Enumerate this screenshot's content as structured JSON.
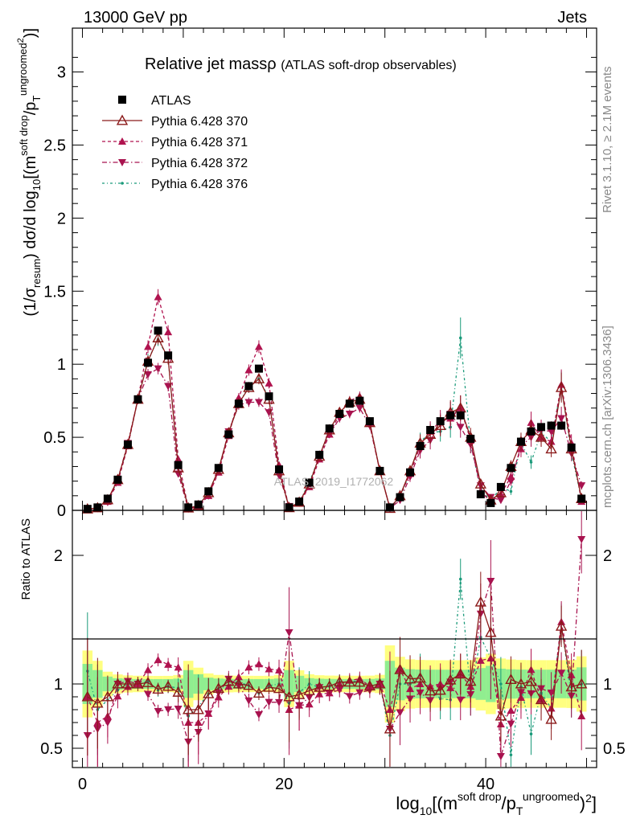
{
  "header": {
    "left": "13000 GeV pp",
    "right": "Jets"
  },
  "side_labels": {
    "top": "Rivet 3.1.10, ≥ 2.1M events",
    "bottom": "mcplots.cern.ch [arXiv:1306.3436]"
  },
  "watermark": "ATLAS_2019_I1772062",
  "title": {
    "main": "Relative jet massρ",
    "sub": "(ATLAS soft-drop observables)"
  },
  "main_ylabel": {
    "pre": "(1/σ",
    "sub1": "resum",
    "mid": ") dσ/d log",
    "sub2": "10",
    "post": "[(m",
    "sup1": "soft drop",
    "slash": "/p",
    "sub3": "T",
    "sup2": "ungroomed",
    "sup3": "2",
    "end": ")]"
  },
  "ratio_ylabel": "Ratio to ATLAS",
  "xlabel": {
    "pre": "log",
    "sub1": "10",
    "mid": "[(m",
    "sup1": "soft drop",
    "slash": "/p",
    "sub2": "T",
    "sup2": "ungroomed",
    "end": ")",
    "sup3": "2",
    "close": "]"
  },
  "legend": [
    {
      "name": "ATLAS",
      "color": "#000000",
      "marker": "square"
    },
    {
      "name": "Pythia 6.428 370",
      "color": "#8b1a1a",
      "marker": "triangle-open"
    },
    {
      "name": "Pythia 6.428 371",
      "color": "#b0134f",
      "marker": "triangle-up"
    },
    {
      "name": "Pythia 6.428 372",
      "color": "#a8134f",
      "marker": "triangle-down"
    },
    {
      "name": "Pythia 6.428 376",
      "color": "#1a9a7a",
      "marker": "dot"
    }
  ],
  "chart_data": {
    "type": "scatter",
    "x": [
      0.5,
      1.5,
      2.5,
      3.5,
      4.5,
      5.5,
      6.5,
      7.5,
      8.5,
      9.5,
      10.5,
      11.5,
      12.5,
      13.5,
      14.5,
      15.5,
      16.5,
      17.5,
      18.5,
      19.5,
      20.5,
      21.5,
      22.5,
      23.5,
      24.5,
      25.5,
      26.5,
      27.5,
      28.5,
      29.5,
      30.5,
      31.5,
      32.5,
      33.5,
      34.5,
      35.5,
      36.5,
      37.5,
      38.5,
      39.5,
      40.5,
      41.5,
      42.5,
      43.5,
      44.5,
      45.5,
      46.5,
      47.5,
      48.5,
      49.5
    ],
    "xlim": [
      -1,
      51
    ],
    "xticks": [
      0,
      20,
      40
    ],
    "main_ylim": [
      0,
      3.3
    ],
    "main_yticks": [
      0,
      0.5,
      1,
      1.5,
      2,
      2.5,
      3
    ],
    "main_ytick_labels": [
      "0",
      "0.5",
      "1",
      "1.5",
      "2",
      "2.5",
      "3"
    ],
    "ratio_ylim": [
      0.35,
      2.35
    ],
    "ratio_yticks": [
      0.5,
      1,
      2
    ],
    "ratio_ytick_labels": [
      "0.5",
      "1",
      "2"
    ],
    "series": [
      {
        "name": "ATLAS",
        "values": [
          0.01,
          0.02,
          0.08,
          0.21,
          0.45,
          0.76,
          1.01,
          1.23,
          1.06,
          0.31,
          0.02,
          0.04,
          0.13,
          0.29,
          0.52,
          0.73,
          0.85,
          0.97,
          0.78,
          0.28,
          0.02,
          0.06,
          0.19,
          0.38,
          0.56,
          0.66,
          0.73,
          0.75,
          0.61,
          0.27,
          0.02,
          0.09,
          0.26,
          0.44,
          0.55,
          0.61,
          0.65,
          0.65,
          0.49,
          0.11,
          0.05,
          0.16,
          0.29,
          0.47,
          0.54,
          0.57,
          0.58,
          0.58,
          0.43,
          0.08
        ]
      },
      {
        "name": "Pythia 6.428 370",
        "values": [
          0.009,
          0.017,
          0.072,
          0.21,
          0.45,
          0.76,
          1.02,
          1.18,
          1.04,
          0.29,
          0.016,
          0.032,
          0.12,
          0.28,
          0.53,
          0.73,
          0.84,
          0.9,
          0.76,
          0.27,
          0.018,
          0.055,
          0.18,
          0.37,
          0.55,
          0.67,
          0.74,
          0.76,
          0.6,
          0.27,
          0.013,
          0.1,
          0.27,
          0.46,
          0.52,
          0.58,
          0.67,
          0.7,
          0.5,
          0.18,
          0.07,
          0.12,
          0.3,
          0.47,
          0.55,
          0.5,
          0.42,
          0.84,
          0.42,
          0.08
        ]
      },
      {
        "name": "Pythia 6.428 371",
        "values": [
          0.009,
          0.014,
          0.06,
          0.19,
          0.44,
          0.76,
          1.12,
          1.46,
          1.22,
          0.35,
          0.014,
          0.028,
          0.1,
          0.26,
          0.51,
          0.77,
          0.96,
          1.12,
          0.87,
          0.31,
          0.016,
          0.05,
          0.16,
          0.35,
          0.52,
          0.66,
          0.75,
          0.78,
          0.6,
          0.27,
          0.016,
          0.1,
          0.25,
          0.44,
          0.54,
          0.61,
          0.63,
          0.7,
          0.48,
          0.13,
          0.06,
          0.11,
          0.23,
          0.42,
          0.6,
          0.5,
          0.47,
          0.86,
          0.46,
          0.06
        ]
      },
      {
        "name": "Pythia 6.428 372",
        "values": [
          0.006,
          0.013,
          0.056,
          0.21,
          0.46,
          0.76,
          0.93,
          0.97,
          0.85,
          0.25,
          0.011,
          0.025,
          0.1,
          0.27,
          0.54,
          0.72,
          0.74,
          0.74,
          0.67,
          0.24,
          0.028,
          0.05,
          0.17,
          0.37,
          0.52,
          0.63,
          0.66,
          0.7,
          0.58,
          0.27,
          0.013,
          0.07,
          0.23,
          0.41,
          0.48,
          0.59,
          0.66,
          0.57,
          0.45,
          0.17,
          0.09,
          0.07,
          0.2,
          0.44,
          0.5,
          0.55,
          0.54,
          0.63,
          0.39,
          0.17
        ]
      },
      {
        "name": "Pythia 6.428 376",
        "values": [
          0.011,
          0.016,
          0.07,
          0.2,
          0.45,
          0.76,
          1.03,
          1.17,
          1.04,
          0.3,
          0.015,
          0.033,
          0.12,
          0.28,
          0.53,
          0.74,
          0.84,
          0.9,
          0.77,
          0.28,
          0.017,
          0.056,
          0.19,
          0.37,
          0.55,
          0.67,
          0.74,
          0.77,
          0.6,
          0.27,
          0.012,
          0.09,
          0.26,
          0.47,
          0.53,
          0.54,
          0.57,
          1.18,
          0.45,
          0.15,
          0.06,
          0.16,
          0.13,
          0.46,
          0.33,
          0.53,
          0.47,
          0.85,
          0.39,
          0.08
        ]
      }
    ]
  }
}
